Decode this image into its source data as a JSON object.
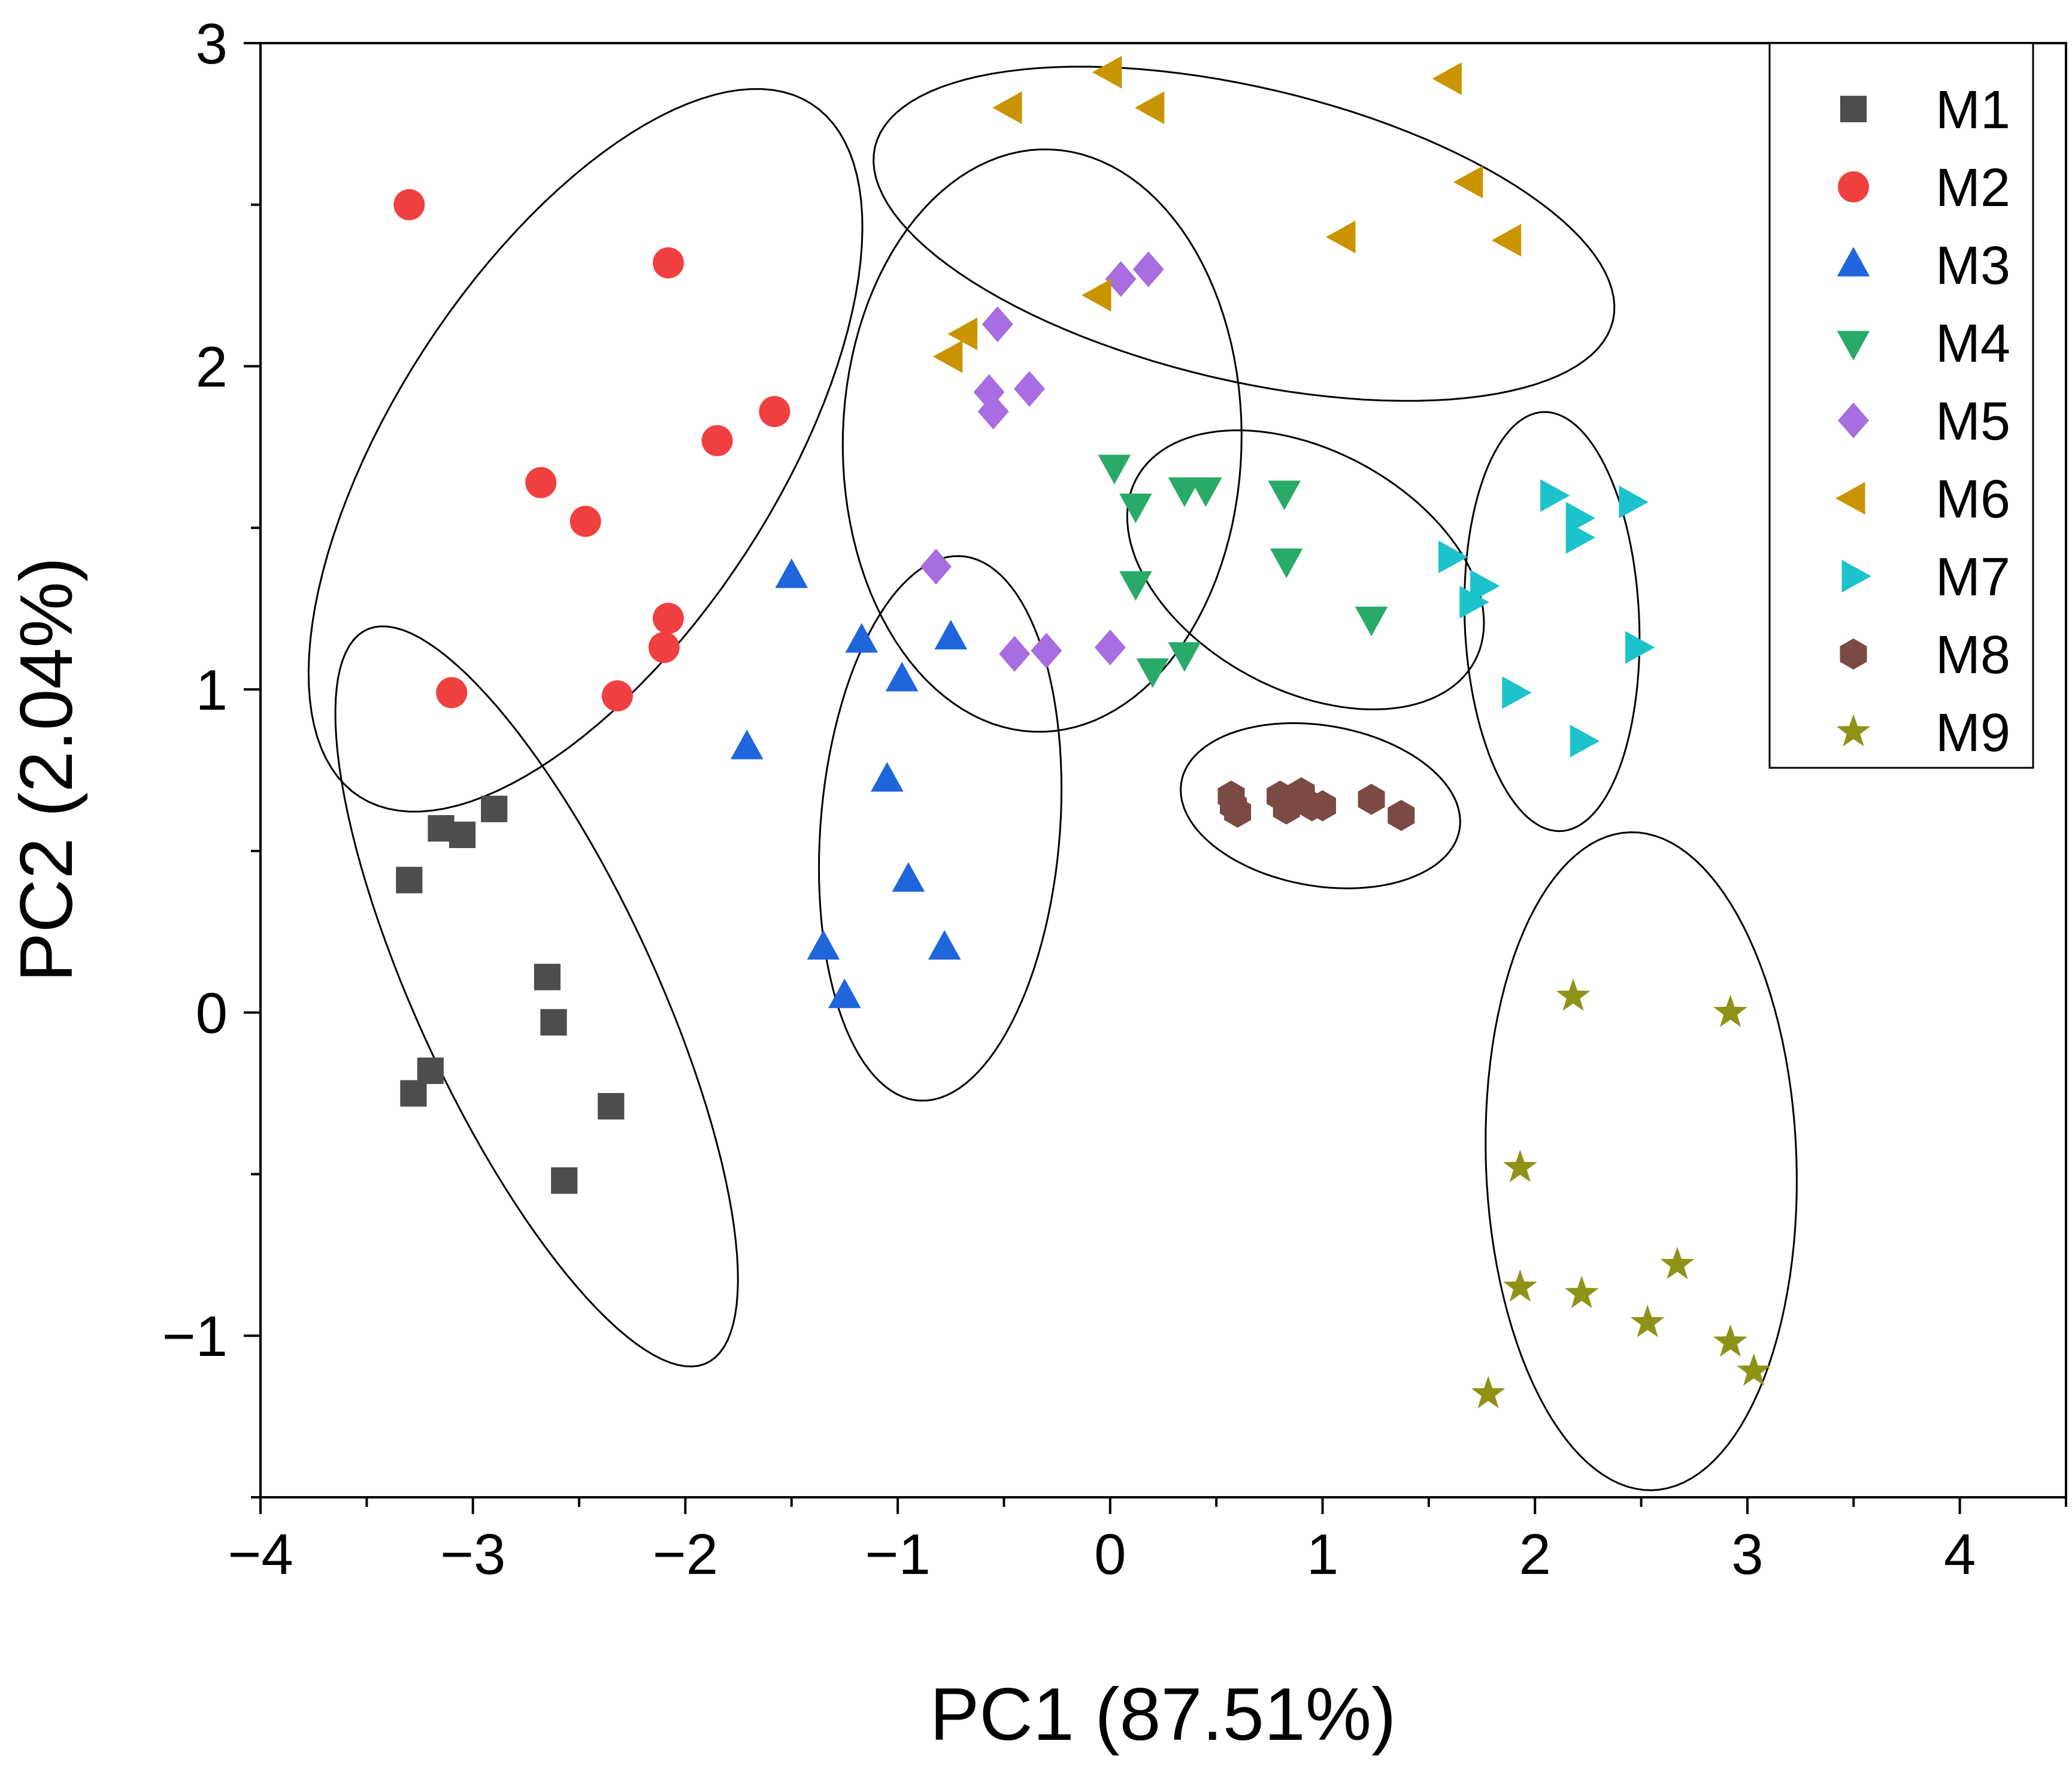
{
  "chart_data": {
    "type": "scatter",
    "xlabel": "PC1  (87.51%)",
    "ylabel": "PC2  (2.04%)",
    "xlim": [
      -4,
      4.5
    ],
    "ylim": [
      -1.5,
      3
    ],
    "xticks": [
      -4,
      -3,
      -2,
      -1,
      0,
      1,
      2,
      3,
      4
    ],
    "yticks": [
      -1,
      0,
      1,
      2,
      3
    ],
    "xtick_labels": [
      "−4",
      "−3",
      "−2",
      "−1",
      "0",
      "1",
      "2",
      "3",
      "4"
    ],
    "ytick_labels": [
      "−1",
      "0",
      "1",
      "2",
      "3"
    ],
    "legend_position": "top-right",
    "series": [
      {
        "name": "M1",
        "marker": "square",
        "color": "#4d4d4d",
        "points": [
          [
            -3.3,
            0.41
          ],
          [
            -3.15,
            0.57
          ],
          [
            -3.05,
            0.55
          ],
          [
            -2.9,
            0.63
          ],
          [
            -2.65,
            0.11
          ],
          [
            -2.62,
            -0.03
          ],
          [
            -3.2,
            -0.18
          ],
          [
            -3.28,
            -0.25
          ],
          [
            -2.35,
            -0.29
          ],
          [
            -2.57,
            -0.52
          ]
        ],
        "ellipse": {
          "cx": -2.7,
          "cy": 0.05,
          "rx": 1.4,
          "ry": 0.5,
          "angle": -52
        }
      },
      {
        "name": "M2",
        "marker": "circle",
        "color": "#f04040",
        "points": [
          [
            -3.3,
            2.5
          ],
          [
            -2.08,
            2.32
          ],
          [
            -1.58,
            1.86
          ],
          [
            -1.85,
            1.77
          ],
          [
            -2.68,
            1.64
          ],
          [
            -2.47,
            1.52
          ],
          [
            -2.08,
            1.22
          ],
          [
            -2.1,
            1.13
          ],
          [
            -3.1,
            0.99
          ],
          [
            -2.32,
            0.98
          ]
        ],
        "ellipse": {
          "cx": -2.47,
          "cy": 1.74,
          "rx": 1.55,
          "ry": 0.74,
          "angle": 38
        }
      },
      {
        "name": "M3",
        "marker": "triangle-up",
        "color": "#1f66dd",
        "points": [
          [
            -1.5,
            1.35
          ],
          [
            -1.17,
            1.15
          ],
          [
            -0.75,
            1.16
          ],
          [
            -0.98,
            1.03
          ],
          [
            -1.71,
            0.82
          ],
          [
            -1.05,
            0.72
          ],
          [
            -0.95,
            0.41
          ],
          [
            -1.35,
            0.2
          ],
          [
            -0.78,
            0.2
          ],
          [
            -1.25,
            0.05
          ]
        ],
        "ellipse": {
          "cx": -0.8,
          "cy": 0.57,
          "rx": 0.85,
          "ry": 0.56,
          "angle": -100
        }
      },
      {
        "name": "M4",
        "marker": "triangle-down",
        "color": "#2aaa68",
        "points": [
          [
            0.02,
            1.69
          ],
          [
            0.12,
            1.57
          ],
          [
            0.35,
            1.62
          ],
          [
            0.45,
            1.62
          ],
          [
            0.82,
            1.61
          ],
          [
            0.83,
            1.4
          ],
          [
            0.12,
            1.33
          ],
          [
            1.23,
            1.22
          ],
          [
            0.35,
            1.11
          ],
          [
            0.2,
            1.06
          ]
        ],
        "ellipse": {
          "cx": 0.92,
          "cy": 1.37,
          "rx": 0.86,
          "ry": 0.39,
          "angle": -14
        }
      },
      {
        "name": "M5",
        "marker": "diamond",
        "color": "#a86de0",
        "points": [
          [
            0.05,
            2.27
          ],
          [
            0.18,
            2.3
          ],
          [
            -0.53,
            2.13
          ],
          [
            -0.57,
            1.92
          ],
          [
            -0.38,
            1.93
          ],
          [
            -0.55,
            1.86
          ],
          [
            -0.82,
            1.38
          ],
          [
            -0.45,
            1.11
          ],
          [
            -0.3,
            1.12
          ],
          [
            0.0,
            1.13
          ]
        ],
        "ellipse": {
          "cx": -0.32,
          "cy": 1.77,
          "rx": 0.94,
          "ry": 0.9,
          "angle": 10
        }
      },
      {
        "name": "M6",
        "marker": "triangle-left",
        "color": "#c99400",
        "points": [
          [
            0.0,
            2.91
          ],
          [
            1.6,
            2.89
          ],
          [
            -0.47,
            2.8
          ],
          [
            0.2,
            2.8
          ],
          [
            1.7,
            2.57
          ],
          [
            1.1,
            2.4
          ],
          [
            1.88,
            2.39
          ],
          [
            -0.05,
            2.22
          ],
          [
            -0.68,
            2.1
          ],
          [
            -0.75,
            2.03
          ]
        ],
        "ellipse": {
          "cx": 0.63,
          "cy": 2.41,
          "rx": 1.76,
          "ry": 0.46,
          "angle": -8
        }
      },
      {
        "name": "M7",
        "marker": "triangle-right",
        "color": "#1cc3cc",
        "points": [
          [
            2.08,
            1.6
          ],
          [
            2.45,
            1.58
          ],
          [
            2.2,
            1.53
          ],
          [
            2.2,
            1.47
          ],
          [
            1.6,
            1.41
          ],
          [
            1.75,
            1.32
          ],
          [
            1.7,
            1.27
          ],
          [
            2.48,
            1.13
          ],
          [
            1.9,
            0.99
          ],
          [
            2.22,
            0.84
          ]
        ],
        "ellipse": {
          "cx": 2.08,
          "cy": 1.21,
          "rx": 0.65,
          "ry": 0.41,
          "angle": -85
        }
      },
      {
        "name": "M8",
        "marker": "hexagon",
        "color": "#7b4a45",
        "points": [
          [
            0.57,
            0.67
          ],
          [
            0.6,
            0.62
          ],
          [
            0.8,
            0.67
          ],
          [
            0.83,
            0.63
          ],
          [
            0.9,
            0.68
          ],
          [
            0.95,
            0.64
          ],
          [
            1.0,
            0.64
          ],
          [
            1.23,
            0.66
          ],
          [
            1.37,
            0.61
          ],
          [
            0.58,
            0.64
          ]
        ],
        "ellipse": {
          "cx": 0.99,
          "cy": 0.64,
          "rx": 0.66,
          "ry": 0.25,
          "angle": -5
        }
      },
      {
        "name": "M9",
        "marker": "star",
        "color": "#8e9318",
        "points": [
          [
            2.18,
            0.05
          ],
          [
            2.92,
            0.0
          ],
          [
            1.93,
            -0.48
          ],
          [
            2.67,
            -0.78
          ],
          [
            1.93,
            -0.85
          ],
          [
            2.22,
            -0.87
          ],
          [
            2.53,
            -0.96
          ],
          [
            2.92,
            -1.02
          ],
          [
            3.03,
            -1.11
          ],
          [
            1.78,
            -1.18
          ]
        ],
        "ellipse": {
          "cx": 2.5,
          "cy": -0.46,
          "rx": 1.02,
          "ry": 0.73,
          "angle": 95
        }
      }
    ]
  }
}
